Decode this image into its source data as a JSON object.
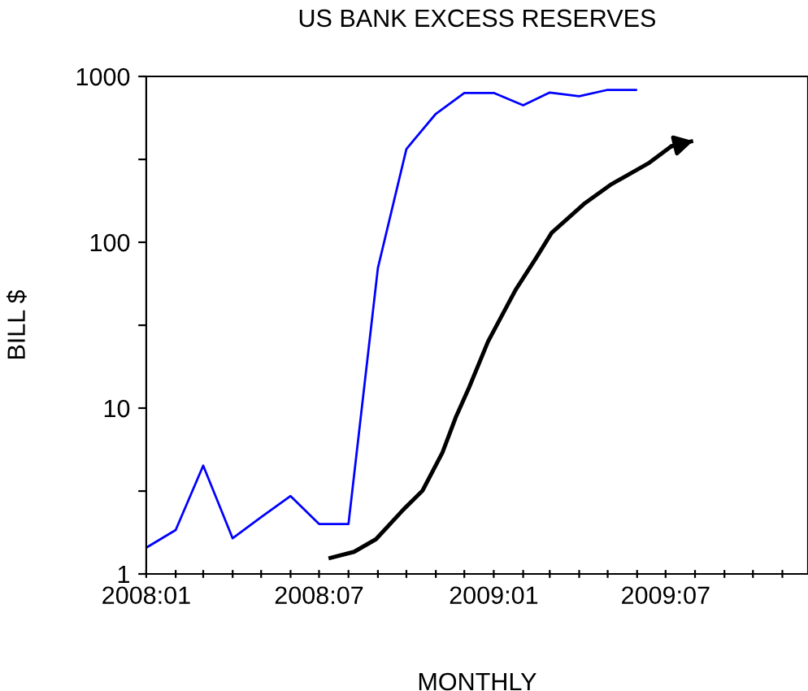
{
  "chart_data": {
    "type": "line",
    "title": "US BANK EXCESS RESERVES",
    "xlabel": "MONTHLY",
    "ylabel": "BILL $",
    "log": "y",
    "grid": false,
    "marker": "none",
    "line_style": "solid",
    "series": [
      {
        "color": "#0000ff",
        "x": [
          "2008-01",
          "2008-02",
          "2008-03",
          "2008-04",
          "2008-05",
          "2008-06",
          "2008-07",
          "2008-08",
          "2008-09",
          "2008-10",
          "2008-11",
          "2008-12",
          "2009-01",
          "2009-02",
          "2009-03",
          "2009-04",
          "2009-05",
          "2009-06"
        ],
        "values": [
          1.44,
          1.84,
          4.5,
          1.64,
          2.2,
          2.95,
          2.0,
          2.0,
          70,
          365,
          595,
          795,
          795,
          670,
          800,
          760,
          830,
          830
        ]
      },
      {
        "color": "#000000",
        "x": [
          "2008-07-11",
          "2008-08-07",
          "2008-08-30",
          "2008-09-28",
          "2008-10-18",
          "2008-11-08",
          "2008-11-22",
          "2008-12-06",
          "2008-12-26",
          "2009-01-24",
          "2009-02-15",
          "2009-03-03",
          "2009-04-07",
          "2009-05-05",
          "2009-06-14",
          "2009-07-07",
          "2009-07-30"
        ],
        "values": [
          1.24,
          1.36,
          1.62,
          2.45,
          3.18,
          5.4,
          8.8,
          13.3,
          25.2,
          51.6,
          81,
          114,
          172,
          224,
          302,
          379,
          408
        ]
      }
    ],
    "xlim": [
      "2008-01",
      "2009-11-28"
    ],
    "xticks": [
      {
        "value": "2008-01",
        "label": "2008:01"
      },
      {
        "value": "2008-02",
        "label": null
      },
      {
        "value": "2008-03",
        "label": null
      },
      {
        "value": "2008-04",
        "label": null
      },
      {
        "value": "2008-05",
        "label": null
      },
      {
        "value": "2008-06",
        "label": null
      },
      {
        "value": "2008-07",
        "label": "2008:07"
      },
      {
        "value": "2008-08",
        "label": null
      },
      {
        "value": "2008-09",
        "label": null
      },
      {
        "value": "2008-10",
        "label": null
      },
      {
        "value": "2008-11",
        "label": null
      },
      {
        "value": "2008-12",
        "label": null
      },
      {
        "value": "2009-01",
        "label": "2009:01"
      },
      {
        "value": "2009-02",
        "label": null
      },
      {
        "value": "2009-03",
        "label": null
      },
      {
        "value": "2009-04",
        "label": null
      },
      {
        "value": "2009-05",
        "label": null
      },
      {
        "value": "2009-06",
        "label": null
      },
      {
        "value": "2009-07",
        "label": "2009:07"
      },
      {
        "value": "2009-08",
        "label": null
      },
      {
        "value": "2009-09",
        "label": null
      },
      {
        "value": "2009-10",
        "label": null
      },
      {
        "value": "2009-11",
        "label": null
      }
    ],
    "ylim": [
      1,
      1000
    ],
    "yticks": [
      1,
      {
        "value": 3.16,
        "label": null
      },
      10,
      {
        "value": 31.6,
        "label": null
      },
      100,
      {
        "value": 316,
        "label": null
      },
      1000
    ]
  }
}
